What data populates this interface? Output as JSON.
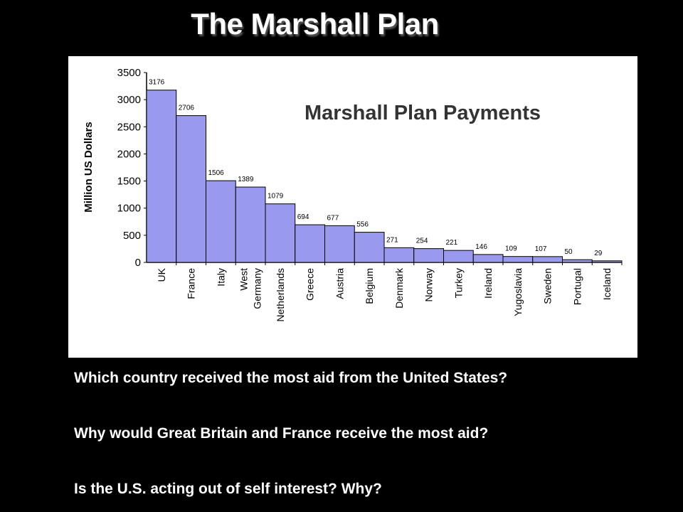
{
  "slide": {
    "title": "The Marshall Plan",
    "questions": [
      "Which country received the most aid from the United States?",
      "Why would Great Britain and France receive the most aid?",
      "Is the U.S. acting out of self interest?  Why?"
    ]
  },
  "chart_data": {
    "type": "bar",
    "title": "Marshall Plan Payments",
    "xlabel": "",
    "ylabel": "Million US Dollars",
    "ylim": [
      0,
      3500
    ],
    "yticks": [
      0,
      500,
      1000,
      1500,
      2000,
      2500,
      3000,
      3500
    ],
    "categories": [
      "UK",
      "France",
      "Italy",
      "West Germany",
      "Netherlands",
      "Greece",
      "Austria",
      "Belgium",
      "Denmark",
      "Norway",
      "Turkey",
      "Ireland",
      "Yugoslavia",
      "Sweden",
      "Portugal",
      "Iceland"
    ],
    "category_label_lines": [
      [
        "UK"
      ],
      [
        "France"
      ],
      [
        "Italy"
      ],
      [
        "West",
        "Germany"
      ],
      [
        "Netherlands"
      ],
      [
        "Greece"
      ],
      [
        "Austria"
      ],
      [
        "Belgium"
      ],
      [
        "Denmark"
      ],
      [
        "Norway"
      ],
      [
        "Turkey"
      ],
      [
        "Ireland"
      ],
      [
        "Yugoslavia"
      ],
      [
        "Sweden"
      ],
      [
        "Portugal"
      ],
      [
        "Iceland"
      ]
    ],
    "values": [
      3176,
      2706,
      1506,
      1389,
      1079,
      694,
      677,
      556,
      271,
      254,
      221,
      146,
      109,
      107,
      50,
      29
    ],
    "grid": false,
    "legend": "none",
    "colors": {
      "bar_fill": "#9999ee",
      "bar_stroke": "#000000"
    }
  }
}
